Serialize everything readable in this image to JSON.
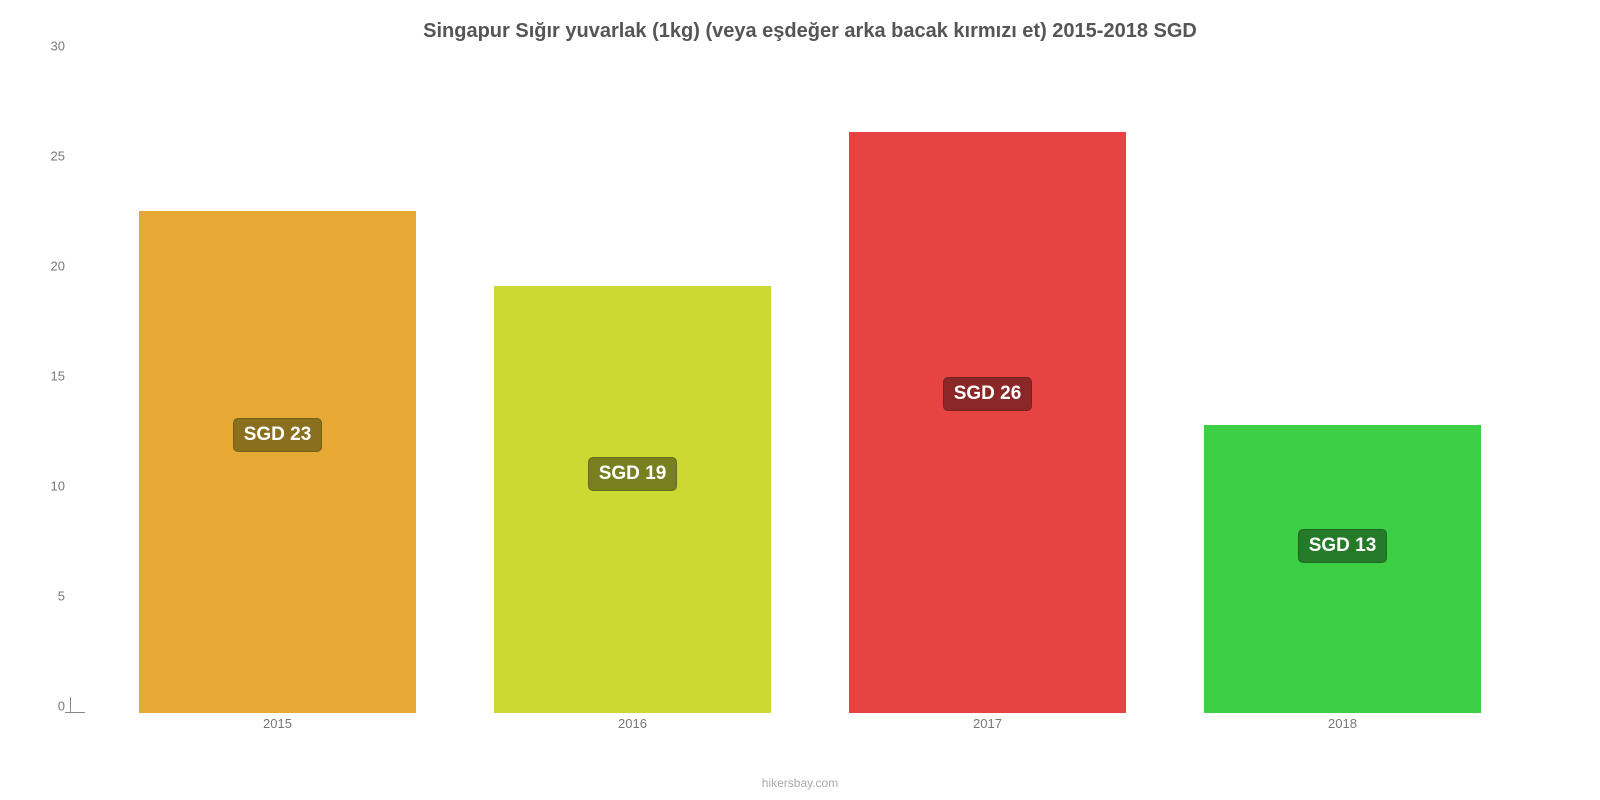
{
  "chart": {
    "type": "bar",
    "title": "Singapur Sığır yuvarlak (1kg) (veya eşdeğer arka bacak kırmızı et) 2015-2018 SGD",
    "title_fontsize": 20,
    "title_color": "#555555",
    "background_color": "#ffffff",
    "bar_width_ratio": 0.78,
    "ylim": [
      0,
      30
    ],
    "ytick_step": 5,
    "y_ticks": [
      0,
      5,
      10,
      15,
      20,
      25,
      30
    ],
    "tick_fontsize": 13,
    "tick_color": "#777777",
    "categories": [
      "2015",
      "2016",
      "2017",
      "2018"
    ],
    "values": [
      22.8,
      19.4,
      26.4,
      13.1
    ],
    "bar_colors": [
      "#e6a933",
      "#cdd933",
      "#e64343",
      "#3cce44"
    ],
    "value_labels": [
      "SGD 23",
      "SGD 19",
      "SGD 26",
      "SGD 13"
    ],
    "label_bg_colors": [
      "#8a6f1f",
      "#787f1e",
      "#8a2727",
      "#247a28"
    ],
    "label_fontsize": 19,
    "label_text_color": "#ffffff",
    "watermark": "hikersbay.com",
    "watermark_color": "#aaaaaa",
    "watermark_fontsize": 12
  }
}
